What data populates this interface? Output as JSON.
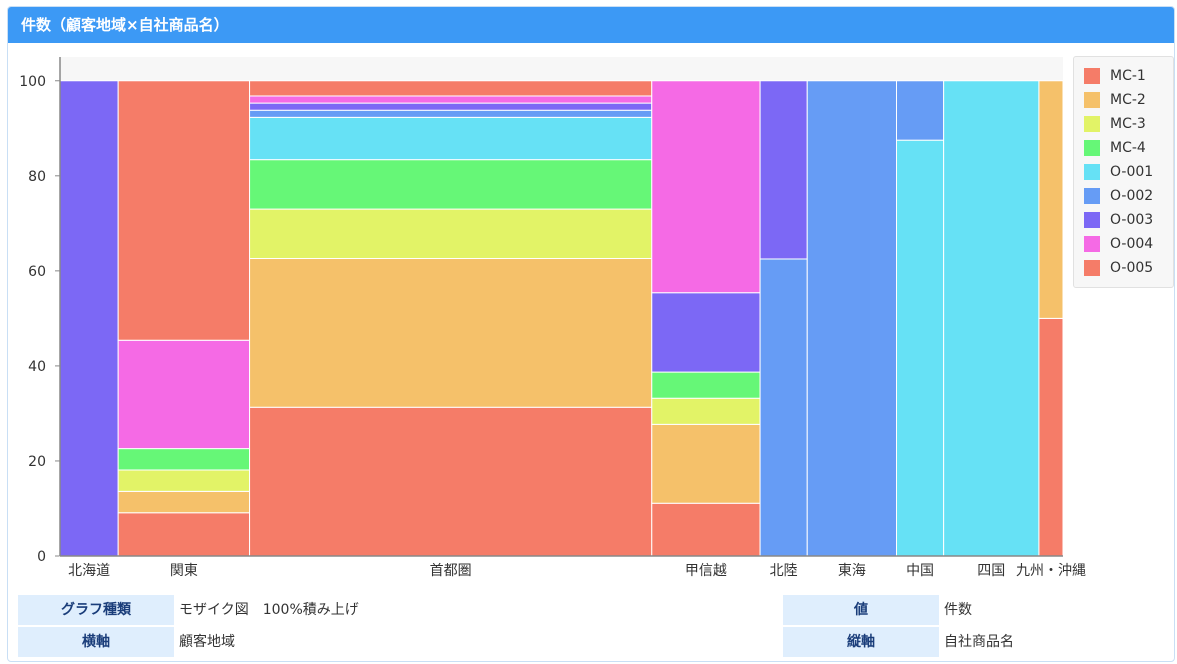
{
  "header": {
    "title": "件数（顧客地域×自社商品名）"
  },
  "chart_data": {
    "type": "mosaic",
    "title": "件数（顧客地域×自社商品名）",
    "ylim": [
      0,
      105
    ],
    "yticks": [
      0,
      20,
      40,
      60,
      80,
      100
    ],
    "series_names": [
      "MC-1",
      "MC-2",
      "MC-3",
      "MC-4",
      "O-001",
      "O-002",
      "O-003",
      "O-004",
      "O-005"
    ],
    "colors": [
      "#f57c68",
      "#f5c16a",
      "#e2f367",
      "#66f777",
      "#66e1f5",
      "#669cf5",
      "#7c68f5",
      "#f56ae5",
      "#f57c68"
    ],
    "categories": [
      {
        "label": "北海道",
        "width_share": 5.8,
        "segments": [
          0,
          0,
          0,
          0,
          0,
          0,
          100,
          0,
          0
        ]
      },
      {
        "label": "関東",
        "width_share": 13.1,
        "segments": [
          9.1,
          4.5,
          4.5,
          4.5,
          0,
          0,
          0,
          22.8,
          54.6
        ]
      },
      {
        "label": "首都圏",
        "width_share": 40.1,
        "segments": [
          31.3,
          31.3,
          10.4,
          10.4,
          8.9,
          1.5,
          1.5,
          1.5,
          3.2
        ]
      },
      {
        "label": "甲信越",
        "width_share": 10.8,
        "segments": [
          11.1,
          16.6,
          5.5,
          5.5,
          0,
          0,
          16.7,
          44.6,
          0
        ]
      },
      {
        "label": "北陸",
        "width_share": 4.7,
        "segments": [
          0,
          0,
          0,
          0,
          0,
          62.5,
          37.5,
          0,
          0
        ]
      },
      {
        "label": "東海",
        "width_share": 8.9,
        "segments": [
          0,
          0,
          0,
          0,
          0,
          100,
          0,
          0,
          0
        ]
      },
      {
        "label": "中国",
        "width_share": 4.7,
        "segments": [
          0,
          0,
          0,
          0,
          87.5,
          12.5,
          0,
          0,
          0
        ]
      },
      {
        "label": "四国",
        "width_share": 9.5,
        "segments": [
          0,
          0,
          0,
          0,
          100,
          0,
          0,
          0,
          0
        ]
      },
      {
        "label": "九州・沖縄",
        "width_share": 2.4,
        "segments": [
          50,
          50,
          0,
          0,
          0,
          0,
          0,
          0,
          0
        ]
      }
    ],
    "legend": [
      "MC-1",
      "MC-2",
      "MC-3",
      "MC-4",
      "O-001",
      "O-002",
      "O-003",
      "O-004",
      "O-005"
    ]
  },
  "info": {
    "graph_type_label": "グラフ種類",
    "graph_type_value": "モザイク図　100%積み上げ",
    "xaxis_label": "横軸",
    "xaxis_value": "顧客地域",
    "value_label": "値",
    "value_value": "件数",
    "yaxis_label": "縦軸",
    "yaxis_value": "自社商品名"
  }
}
